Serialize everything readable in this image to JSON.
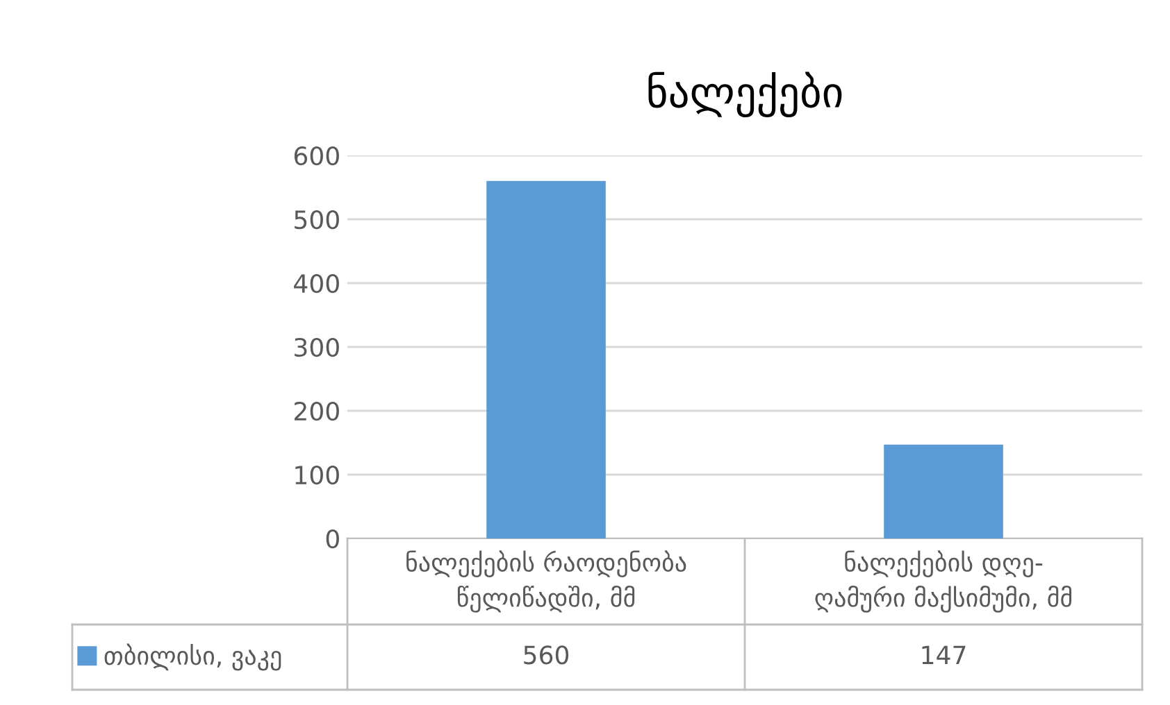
{
  "chart_data": {
    "type": "bar",
    "title": "ნალექები",
    "categories": [
      "ნალექების რაოდენობა\nწელიწადში, მმ",
      "ნალექების დღე-\nღამური მაქსიმუმი, მმ"
    ],
    "series": [
      {
        "name": "თბილისი, ვაკე",
        "color": "#5b9bd5",
        "values": [
          560,
          147
        ]
      }
    ],
    "ylim": [
      0,
      600
    ],
    "yticks": [
      0,
      100,
      200,
      300,
      400,
      500,
      600
    ],
    "grid": "y",
    "legend": "bottom",
    "data_labels": true
  }
}
